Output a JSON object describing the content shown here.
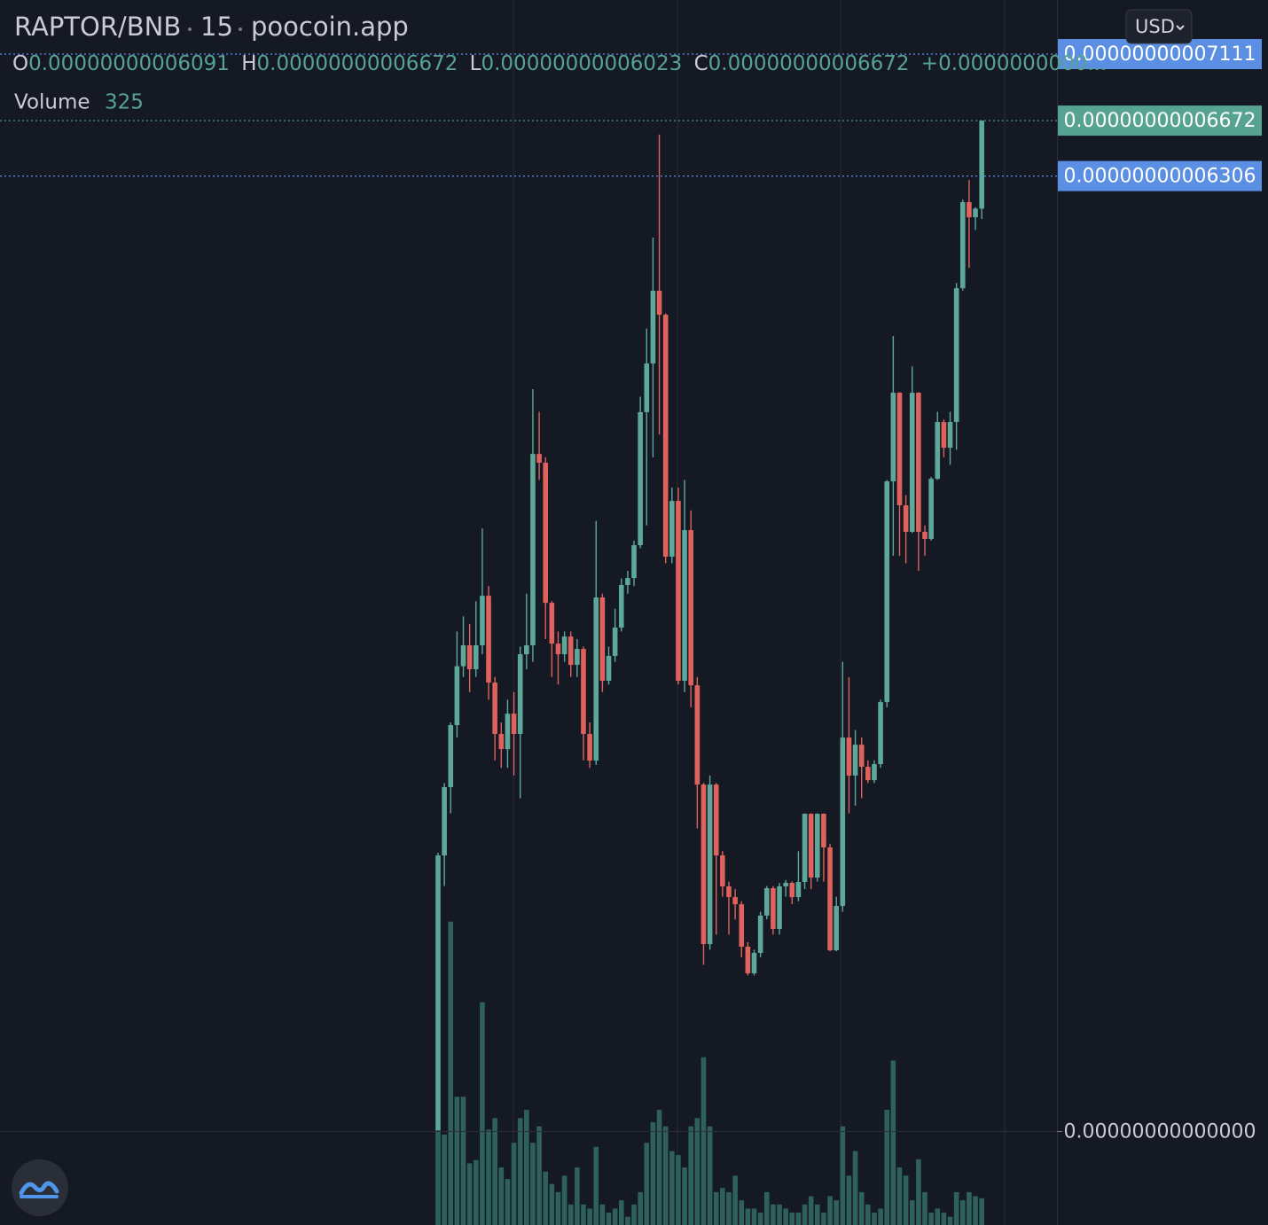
{
  "chart_data": {
    "type": "candlestick",
    "symbol": "RAPTOR/BNB",
    "interval": "15",
    "source": "poocoin.app",
    "currency": "USD",
    "legend": [
      {
        "label": "O",
        "value": "0.00000000006091"
      },
      {
        "label": "H",
        "value": "0.00000000006672"
      },
      {
        "label": "L",
        "value": "0.00000000006023"
      },
      {
        "label": "C",
        "value": "0.00000000006672"
      }
    ],
    "change": "+0.0000000000...",
    "volume_label": "Volume",
    "up_color": "#5ea89a",
    "down_color": "#e0625d",
    "volume_color": "#2e615c",
    "ylim": [
      -6.17e-12,
      7.468e-11
    ],
    "yticks": [
      {
        "value": 7.111e-11,
        "label": "0.00000000007111"
      },
      {
        "value": 6.672e-11,
        "label": "0.00000000006672"
      },
      {
        "value": 6.306e-11,
        "label": "0.00000000006306"
      },
      {
        "value": 0,
        "label": "0.00000000000000"
      }
    ],
    "price_line_colors": [
      "#5b8fe3",
      "#56a391",
      "#5b8fe3",
      null
    ],
    "y2lim": [
      0,
      14900
    ],
    "open": [
      9e-14,
      1.822e-11,
      2.273e-11,
      2.682e-11,
      3.071e-11,
      3.209e-11,
      3.051e-11,
      3.209e-11,
      3.536e-11,
      2.963e-11,
      2.624e-11,
      2.524e-11,
      2.758e-11,
      2.624e-11,
      3.15e-11,
      3.209e-11,
      4.472e-11,
      4.414e-11,
      3.489e-11,
      3.22e-11,
      3.15e-11,
      3.267e-11,
      3.08e-11,
      3.185e-11,
      2.624e-11,
      2.448e-11,
      3.525e-11,
      2.975e-11,
      3.139e-11,
      3.326e-11,
      3.607e-11,
      3.653e-11,
      3.87e-11,
      4.748e-11,
      5.069e-11,
      5.549e-11,
      5.391e-11,
      3.794e-11,
      4.162e-11,
      2.975e-11,
      3.969e-11,
      2.945e-11,
      2.29e-11,
      1.237e-11,
      2.29e-11,
      1.822e-11,
      1.618e-11,
      1.547e-11,
      1.5e-11,
      1.22e-11,
      1.044e-11,
      1.179e-11,
      1.425e-11,
      1.606e-11,
      1.337e-11,
      1.618e-11,
      1.641e-11,
      1.547e-11,
      1.647e-11,
      2.097e-11,
      1.676e-11,
      2.097e-11,
      1.875e-11,
      1.196e-11,
      1.489e-11,
      2.6e-11,
      2.349e-11,
      2.553e-11,
      2.407e-11,
      2.319e-11,
      2.425e-11,
      2.834e-11,
      4.291e-11,
      4.876e-11,
      4.133e-11,
      3.958e-11,
      4.876e-11,
      3.958e-11,
      3.911e-11,
      4.308e-11,
      4.683e-11,
      4.513e-11,
      4.683e-11,
      5.566e-11,
      6.134e-11,
      6.034e-11,
      6.091e-11
    ],
    "high": [
      1.84e-11,
      2.3e-11,
      2.7e-11,
      3.3e-11,
      3.4e-11,
      3.35e-11,
      3.5e-11,
      3.98e-11,
      3.6e-11,
      3e-11,
      2.7e-11,
      2.85e-11,
      2.9e-11,
      3.2e-11,
      3.55e-11,
      4.9e-11,
      4.75e-11,
      4.45e-11,
      3.5e-11,
      3.3e-11,
      3.3e-11,
      3.3e-11,
      3.25e-11,
      3.2e-11,
      2.7e-11,
      4.03e-11,
      3.55e-11,
      3.2e-11,
      3.45e-11,
      3.65e-11,
      3.7e-11,
      3.9e-11,
      4.85e-11,
      5.3e-11,
      5.9e-11,
      6.58e-11,
      5.4e-11,
      4.25e-11,
      4.25e-11,
      4.3e-11,
      4.1e-11,
      3e-11,
      2.3e-11,
      2.35e-11,
      2.3e-11,
      1.85e-11,
      1.65e-11,
      1.6e-11,
      1.52e-11,
      1.25e-11,
      1.2e-11,
      1.45e-11,
      1.62e-11,
      1.62e-11,
      1.64e-11,
      1.66e-11,
      1.65e-11,
      1.85e-11,
      2.1e-11,
      2.1e-11,
      2.1e-11,
      2.1e-11,
      1.9e-11,
      1.55e-11,
      3.1e-11,
      3e-11,
      2.65e-11,
      2.6e-11,
      2.45e-11,
      2.45e-11,
      2.85e-11,
      4.3e-11,
      5.25e-11,
      4.88e-11,
      4.2e-11,
      5.05e-11,
      4.88e-11,
      4e-11,
      4.32e-11,
      4.75e-11,
      4.7e-11,
      4.75e-11,
      5.6e-11,
      6.15e-11,
      6.28e-11,
      6.1e-11,
      6.672e-11
    ],
    "low": [
      9e-14,
      1.62e-11,
      2.1e-11,
      2.6e-11,
      3e-11,
      2.9e-11,
      3e-11,
      3.15e-11,
      2.85e-11,
      2.45e-11,
      2.4e-11,
      2.4e-11,
      2.35e-11,
      2.2e-11,
      3.05e-11,
      3.1e-11,
      4.3e-11,
      3.25e-11,
      3e-11,
      2.95e-11,
      3.1e-11,
      3e-11,
      3e-11,
      2.45e-11,
      2.4e-11,
      2.42e-11,
      2.9e-11,
      2.95e-11,
      3.1e-11,
      3.3e-11,
      3.55e-11,
      3.6e-11,
      3.85e-11,
      4e-11,
      4.45e-11,
      4.6e-11,
      3.75e-11,
      3.75e-11,
      2.95e-11,
      2.9e-11,
      2.8e-11,
      2e-11,
      1.1e-11,
      1.2e-11,
      1.3e-11,
      1.55e-11,
      1.3e-11,
      1.4e-11,
      1.15e-11,
      1.03e-11,
      1.03e-11,
      1.15e-11,
      1.4e-11,
      1.3e-11,
      1.3e-11,
      1.55e-11,
      1.5e-11,
      1.52e-11,
      1.6e-11,
      1.6e-11,
      1.65e-11,
      1.65e-11,
      1.19e-11,
      1.19e-11,
      1.45e-11,
      2.1e-11,
      2.15e-11,
      2.2e-11,
      2.3e-11,
      2.3e-11,
      2.4e-11,
      2.8e-11,
      3.8e-11,
      3.8e-11,
      3.75e-11,
      3.95e-11,
      3.7e-11,
      3.8e-11,
      3.9e-11,
      4.3e-11,
      4.45e-11,
      4.4e-11,
      4.5e-11,
      5.55e-11,
      5.7e-11,
      5.95e-11,
      6.023e-11
    ],
    "close": [
      1.822e-11,
      2.273e-11,
      2.682e-11,
      3.071e-11,
      3.209e-11,
      3.051e-11,
      3.209e-11,
      3.536e-11,
      2.963e-11,
      2.624e-11,
      2.524e-11,
      2.758e-11,
      2.624e-11,
      3.15e-11,
      3.209e-11,
      4.472e-11,
      4.414e-11,
      3.489e-11,
      3.22e-11,
      3.15e-11,
      3.267e-11,
      3.08e-11,
      3.185e-11,
      2.624e-11,
      2.448e-11,
      3.525e-11,
      2.975e-11,
      3.139e-11,
      3.326e-11,
      3.607e-11,
      3.653e-11,
      3.87e-11,
      4.748e-11,
      5.069e-11,
      5.549e-11,
      5.391e-11,
      3.794e-11,
      4.162e-11,
      2.975e-11,
      3.969e-11,
      2.945e-11,
      2.29e-11,
      1.237e-11,
      2.29e-11,
      1.822e-11,
      1.618e-11,
      1.547e-11,
      1.5e-11,
      1.22e-11,
      1.044e-11,
      1.179e-11,
      1.425e-11,
      1.606e-11,
      1.337e-11,
      1.618e-11,
      1.641e-11,
      1.547e-11,
      1.647e-11,
      2.097e-11,
      1.676e-11,
      2.097e-11,
      1.875e-11,
      1.196e-11,
      1.489e-11,
      2.6e-11,
      2.349e-11,
      2.553e-11,
      2.407e-11,
      2.319e-11,
      2.425e-11,
      2.834e-11,
      4.291e-11,
      4.876e-11,
      4.133e-11,
      3.958e-11,
      4.876e-11,
      3.958e-11,
      3.911e-11,
      4.308e-11,
      4.683e-11,
      4.513e-11,
      4.683e-11,
      5.566e-11,
      6.134e-11,
      6.034e-11,
      6.091e-11,
      6.672e-11
    ],
    "volume": {
      "values": [
        1160,
        1100,
        3690,
        1560,
        1560,
        750,
        790,
        2710,
        1160,
        1300,
        700,
        560,
        1000,
        1300,
        1400,
        1000,
        1200,
        650,
        500,
        400,
        600,
        250,
        700,
        250,
        200,
        950,
        250,
        150,
        200,
        300,
        100,
        250,
        400,
        1000,
        1250,
        1400,
        1200,
        900,
        850,
        700,
        1200,
        1300,
        2040,
        1200,
        400,
        450,
        400,
        600,
        300,
        200,
        200,
        150,
        400,
        250,
        250,
        200,
        150,
        150,
        250,
        350,
        250,
        150,
        350,
        300,
        1200,
        600,
        900,
        400,
        250,
        150,
        200,
        1400,
        2000,
        700,
        600,
        300,
        800,
        400,
        150,
        200,
        150,
        100,
        400,
        300,
        400,
        350,
        325
      ]
    }
  }
}
